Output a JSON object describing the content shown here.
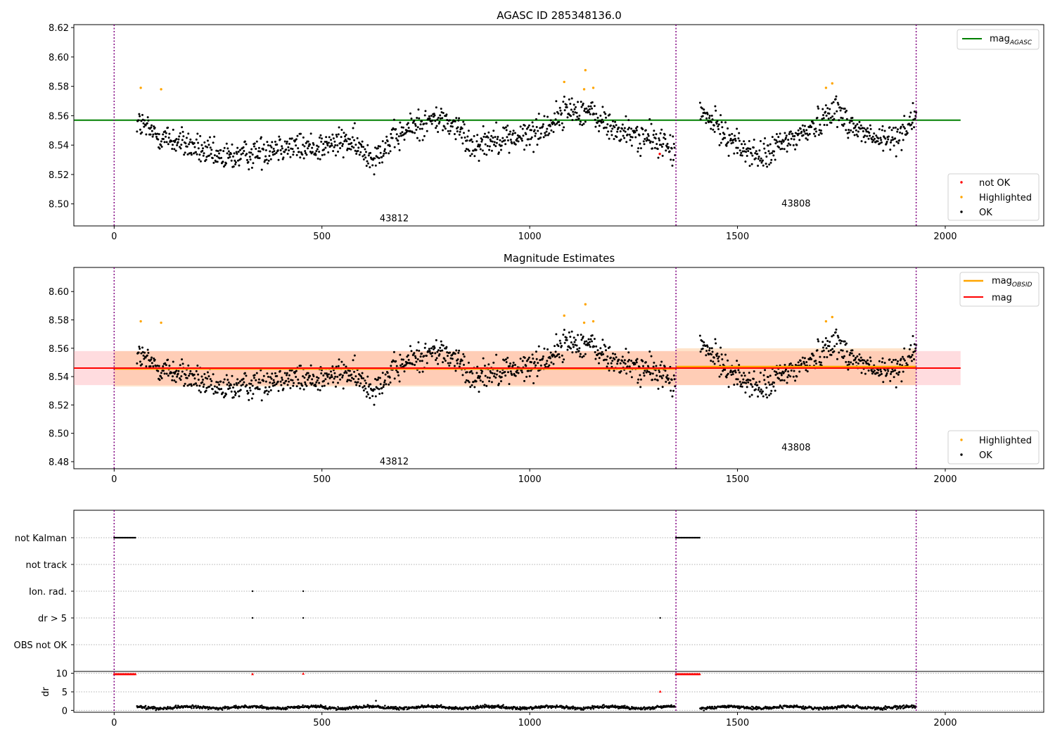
{
  "figure": {
    "title": "AGASC ID 285348136.0",
    "title2": "Magnitude Estimates"
  },
  "chart_data": [
    {
      "type": "scatter",
      "title": "AGASC ID 285348136.0",
      "xlabel": "",
      "ylabel": "",
      "xlim": [
        -97,
        2237
      ],
      "ylim": [
        8.485,
        8.622
      ],
      "x_ticks": [
        0,
        500,
        1000,
        1500,
        2000
      ],
      "y_ticks": [
        8.5,
        8.52,
        8.54,
        8.56,
        8.58,
        8.6,
        8.62
      ],
      "grid": false,
      "obs_boundaries": [
        0,
        1352,
        1930
      ],
      "obs_labels": [
        {
          "x": 674,
          "y": 8.4905,
          "text": "43812"
        },
        {
          "x": 1641,
          "y": 8.5005,
          "text": "43808"
        }
      ],
      "mag_agasc": {
        "name": "mag$_{AGASC}$",
        "value": 8.557,
        "x_range": [
          0,
          2020
        ],
        "color": "#008000"
      },
      "highlighted": {
        "name": "Highlighted",
        "color": "#ffa500",
        "points": [
          [
            64,
            8.579
          ],
          [
            113,
            8.578
          ],
          [
            1083,
            8.583
          ],
          [
            1134,
            8.591
          ],
          [
            1153,
            8.579
          ],
          [
            1131,
            8.578
          ],
          [
            1713,
            8.579
          ],
          [
            1728,
            8.582
          ]
        ]
      },
      "not_ok": {
        "name": "not OK",
        "color": "#ff0000",
        "points": [
          [
            1313,
            8.534
          ]
        ]
      },
      "ok": {
        "name": "OK",
        "color": "#000000",
        "segments": [
          {
            "x_start": 55,
            "x_end": 1350,
            "anchors": [
              [
                55,
                8.556
              ],
              [
                100,
                8.547
              ],
              [
                180,
                8.54
              ],
              [
                250,
                8.531
              ],
              [
                330,
                8.534
              ],
              [
                400,
                8.54
              ],
              [
                460,
                8.538
              ],
              [
                520,
                8.54
              ],
              [
                560,
                8.543
              ],
              [
                620,
                8.532
              ],
              [
                670,
                8.543
              ],
              [
                720,
                8.553
              ],
              [
                780,
                8.558
              ],
              [
                820,
                8.553
              ],
              [
                860,
                8.54
              ],
              [
                920,
                8.545
              ],
              [
                980,
                8.545
              ],
              [
                1040,
                8.552
              ],
              [
                1090,
                8.564
              ],
              [
                1140,
                8.563
              ],
              [
                1200,
                8.551
              ],
              [
                1260,
                8.546
              ],
              [
                1320,
                8.542
              ],
              [
                1350,
                8.535
              ]
            ],
            "spread": 0.009
          },
          {
            "x_start": 1410,
            "x_end": 1930,
            "anchors": [
              [
                1410,
                8.562
              ],
              [
                1450,
                8.553
              ],
              [
                1500,
                8.54
              ],
              [
                1560,
                8.531
              ],
              [
                1600,
                8.54
              ],
              [
                1650,
                8.547
              ],
              [
                1700,
                8.556
              ],
              [
                1730,
                8.566
              ],
              [
                1780,
                8.552
              ],
              [
                1840,
                8.543
              ],
              [
                1880,
                8.545
              ],
              [
                1930,
                8.56
              ]
            ],
            "spread": 0.009
          }
        ]
      },
      "legends": [
        {
          "position": "upper right",
          "entries": [
            "mag$_{AGASC}$"
          ]
        },
        {
          "position": "lower right",
          "entries": [
            "not OK",
            "Highlighted",
            "OK"
          ]
        }
      ]
    },
    {
      "type": "scatter",
      "title": "Magnitude Estimates",
      "xlabel": "",
      "ylabel": "",
      "xlim": [
        -97,
        2237
      ],
      "ylim": [
        8.475,
        8.617
      ],
      "x_ticks": [
        0,
        500,
        1000,
        1500,
        2000
      ],
      "y_ticks": [
        8.48,
        8.5,
        8.52,
        8.54,
        8.56,
        8.58,
        8.6
      ],
      "grid": false,
      "obs_boundaries": [
        0,
        1352,
        1930
      ],
      "obs_labels": [
        {
          "x": 674,
          "y": 8.4805,
          "text": "43812"
        },
        {
          "x": 1641,
          "y": 8.4905,
          "text": "43808"
        }
      ],
      "mag": {
        "name": "mag",
        "value": 8.546,
        "band": [
          8.534,
          8.558
        ],
        "x_range": [
          0,
          2020
        ],
        "color": "#ff0000"
      },
      "mag_obsid": {
        "name": "mag$_{OBSID}$",
        "color": "#ffa500",
        "intervals": [
          {
            "x_range": [
              0,
              1352
            ],
            "value": 8.5455,
            "band": [
              8.533,
              8.558
            ]
          },
          {
            "x_range": [
              1352,
              1930
            ],
            "value": 8.547,
            "band": [
              8.534,
              8.56
            ]
          }
        ]
      },
      "highlighted": {
        "name": "Highlighted",
        "color": "#ffa500",
        "same_as_panel": 1
      },
      "ok": {
        "name": "OK",
        "color": "#000000",
        "same_as_panel": 1
      },
      "legends": [
        {
          "position": "upper right",
          "entries": [
            "mag$_{OBSID}$",
            "mag"
          ]
        },
        {
          "position": "lower right",
          "entries": [
            "Highlighted",
            "OK"
          ]
        }
      ]
    },
    {
      "type": "scatter",
      "title": "",
      "xlabel": "",
      "ylabel": "",
      "xlim": [
        -97,
        2237
      ],
      "categories": [
        "not Kalman",
        "not track",
        "Ion. rad.",
        "dr > 5",
        "OBS not OK"
      ],
      "flag_points": {
        "not Kalman": {
          "ranges": [
            [
              0,
              52
            ],
            [
              1352,
              1410
            ]
          ],
          "step": 3
        },
        "not track": {
          "ranges": [],
          "step": 3
        },
        "Ion. rad.": {
          "points": [
            333,
            455
          ]
        },
        "dr > 5": {
          "points": [
            333,
            455,
            1314
          ]
        },
        "OBS not OK": {
          "points": []
        }
      },
      "obs_boundaries": [
        0,
        1352,
        1930
      ]
    },
    {
      "type": "scatter",
      "title": "",
      "xlabel": "",
      "ylabel": "dr",
      "xlim": [
        -97,
        2237
      ],
      "ylim": [
        -0.5,
        10.5
      ],
      "x_ticks": [
        0,
        500,
        1000,
        1500,
        2000
      ],
      "y_ticks": [
        0,
        5,
        10
      ],
      "grid": true,
      "red_points": {
        "color": "#ff0000",
        "ranges": [
          [
            0,
            52
          ],
          [
            1352,
            1410
          ]
        ],
        "step": 3,
        "value": 9.8,
        "extra": [
          [
            333,
            9.8
          ],
          [
            455,
            9.9
          ],
          [
            1314,
            5.1
          ]
        ]
      },
      "black_points": {
        "color": "#000000",
        "segments": [
          [
            55,
            1350
          ],
          [
            1410,
            1930
          ]
        ],
        "base": 0.8,
        "amp": 0.5,
        "extra": [
          [
            630,
            2.6
          ]
        ]
      },
      "obs_boundaries": [
        0,
        1352,
        1930
      ]
    }
  ]
}
